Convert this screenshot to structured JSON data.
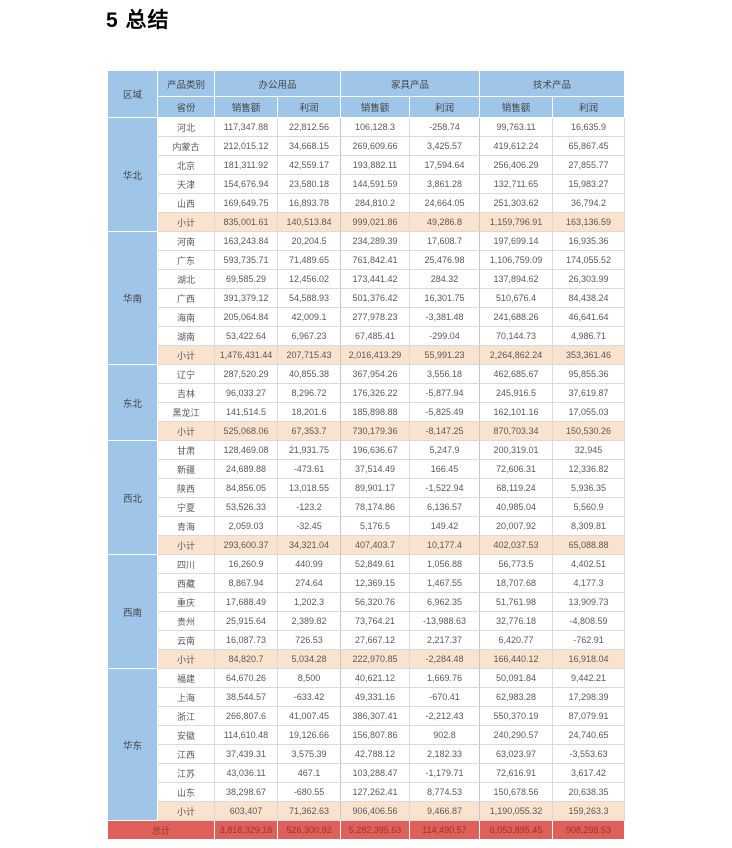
{
  "page_title": "5 总结",
  "colors": {
    "header_bg": "#9FC5E8",
    "header_text": "#454545",
    "body_text": "#595959",
    "grid_line": "#D9D9D9",
    "subtotal_bg": "#FAE3CE",
    "total_bg": "#DF605B",
    "total_text": "#96342F"
  },
  "table": {
    "header": {
      "region": "区域",
      "category": "产品类别",
      "province": "省份",
      "groups": [
        {
          "label": "办公用品",
          "sales": "销售额",
          "profit": "利润"
        },
        {
          "label": "家具产品",
          "sales": "销售额",
          "profit": "利润"
        },
        {
          "label": "技术产品",
          "sales": "销售额",
          "profit": "利润"
        }
      ]
    },
    "subtotal_label": "小计",
    "total_label": "总计",
    "regions": [
      {
        "name": "华北",
        "rows": [
          {
            "province": "河北",
            "values": [
              "117,347.88",
              "22,812.56",
              "106,128.3",
              "-258.74",
              "99,763.11",
              "16,635.9"
            ]
          },
          {
            "province": "内蒙古",
            "values": [
              "212,015.12",
              "34,668.15",
              "269,609.66",
              "3,425.57",
              "419,612.24",
              "65,867.45"
            ]
          },
          {
            "province": "北京",
            "values": [
              "181,311.92",
              "42,559.17",
              "193,882.11",
              "17,594.64",
              "256,406.29",
              "27,855.77"
            ]
          },
          {
            "province": "天津",
            "values": [
              "154,676.94",
              "23,580.18",
              "144,591.59",
              "3,861.28",
              "132,711.65",
              "15,983.27"
            ]
          },
          {
            "province": "山西",
            "values": [
              "169,649.75",
              "16,893.78",
              "284,810.2",
              "24,664.05",
              "251,303.62",
              "36,794.2"
            ]
          }
        ],
        "subtotal": [
          "835,001.61",
          "140,513.84",
          "999,021.86",
          "49,286.8",
          "1,159,796.91",
          "163,136.59"
        ]
      },
      {
        "name": "华南",
        "rows": [
          {
            "province": "河南",
            "values": [
              "163,243.84",
              "20,204.5",
              "234,289.39",
              "17,608.7",
              "197,699.14",
              "16,935.36"
            ]
          },
          {
            "province": "广东",
            "values": [
              "593,735.71",
              "71,489.65",
              "761,842.41",
              "25,476.98",
              "1,106,759.09",
              "174,055.52"
            ]
          },
          {
            "province": "湖北",
            "values": [
              "69,585.29",
              "12,456.02",
              "173,441.42",
              "284.32",
              "137,894.62",
              "26,303.99"
            ]
          },
          {
            "province": "广西",
            "values": [
              "391,379.12",
              "54,588.93",
              "501,376.42",
              "16,301.75",
              "510,676.4",
              "84,438.24"
            ]
          },
          {
            "province": "海南",
            "values": [
              "205,064.84",
              "42,009.1",
              "277,978.23",
              "-3,381.48",
              "241,688.26",
              "46,641.64"
            ]
          },
          {
            "province": "湖南",
            "values": [
              "53,422.64",
              "6,967.23",
              "67,485.41",
              "-299.04",
              "70,144.73",
              "4,986.71"
            ]
          }
        ],
        "subtotal": [
          "1,476,431.44",
          "207,715.43",
          "2,016,413.29",
          "55,991.23",
          "2,264,862.24",
          "353,361.46"
        ]
      },
      {
        "name": "东北",
        "rows": [
          {
            "province": "辽宁",
            "values": [
              "287,520.29",
              "40,855.38",
              "367,954.26",
              "3,556.18",
              "462,685.67",
              "95,855.36"
            ]
          },
          {
            "province": "吉林",
            "values": [
              "96,033.27",
              "8,296.72",
              "176,326.22",
              "-5,877.94",
              "245,916.5",
              "37,619.87"
            ]
          },
          {
            "province": "黑龙江",
            "values": [
              "141,514.5",
              "18,201.6",
              "185,898.88",
              "-5,825.49",
              "162,101.16",
              "17,055.03"
            ]
          }
        ],
        "subtotal": [
          "525,068.06",
          "67,353.7",
          "730,179.36",
          "-8,147.25",
          "870,703.34",
          "150,530.26"
        ]
      },
      {
        "name": "西北",
        "rows": [
          {
            "province": "甘肃",
            "values": [
              "128,469.08",
              "21,931.75",
              "196,636.67",
              "5,247.9",
              "200,319.01",
              "32,945"
            ]
          },
          {
            "province": "新疆",
            "values": [
              "24,689.88",
              "-473.61",
              "37,514.49",
              "166.45",
              "72,606.31",
              "12,336.82"
            ]
          },
          {
            "province": "陕西",
            "values": [
              "84,856.05",
              "13,018.55",
              "89,901.17",
              "-1,522.94",
              "68,119.24",
              "5,936.35"
            ]
          },
          {
            "province": "宁夏",
            "values": [
              "53,526.33",
              "-123.2",
              "78,174.86",
              "6,136.57",
              "40,985.04",
              "5,560.9"
            ]
          },
          {
            "province": "青海",
            "values": [
              "2,059.03",
              "-32.45",
              "5,176.5",
              "149.42",
              "20,007.92",
              "8,309.81"
            ]
          }
        ],
        "subtotal": [
          "293,600.37",
          "34,321.04",
          "407,403.7",
          "10,177.4",
          "402,037.53",
          "65,088.88"
        ]
      },
      {
        "name": "西南",
        "rows": [
          {
            "province": "四川",
            "values": [
              "16,260.9",
              "440.99",
              "52,849.61",
              "1,056.88",
              "56,773.5",
              "4,402.51"
            ]
          },
          {
            "province": "西藏",
            "values": [
              "8,867.94",
              "274.64",
              "12,369.15",
              "1,467.55",
              "18,707.68",
              "4,177.3"
            ]
          },
          {
            "province": "重庆",
            "values": [
              "17,688.49",
              "1,202.3",
              "56,320.76",
              "6,962.35",
              "51,761.98",
              "13,909.73"
            ]
          },
          {
            "province": "贵州",
            "values": [
              "25,915.64",
              "2,389.82",
              "73,764.21",
              "-13,988.63",
              "32,776.18",
              "-4,808.59"
            ]
          },
          {
            "province": "云南",
            "values": [
              "16,087.73",
              "726.53",
              "27,667.12",
              "2,217.37",
              "6,420.77",
              "-762.91"
            ]
          }
        ],
        "subtotal": [
          "84,820.7",
          "5,034.28",
          "222,970.85",
          "-2,284.48",
          "166,440.12",
          "16,918.04"
        ]
      },
      {
        "name": "华东",
        "rows": [
          {
            "province": "福建",
            "values": [
              "64,670.26",
              "8,500",
              "40,621.12",
              "1,669.76",
              "50,091.84",
              "9,442.21"
            ]
          },
          {
            "province": "上海",
            "values": [
              "38,544.57",
              "-633.42",
              "49,331.16",
              "-670.41",
              "62,983.28",
              "17,298.39"
            ]
          },
          {
            "province": "浙江",
            "values": [
              "266,807.6",
              "41,007.45",
              "386,307.41",
              "-2,212.43",
              "550,370.19",
              "87,079.91"
            ]
          },
          {
            "province": "安徽",
            "values": [
              "114,610.48",
              "19,126.66",
              "156,807.86",
              "902.8",
              "240,290.57",
              "24,740.65"
            ]
          },
          {
            "province": "江西",
            "values": [
              "37,439.31",
              "3,575.39",
              "42,788.12",
              "2,182.33",
              "63,023.97",
              "-3,553.63"
            ]
          },
          {
            "province": "江苏",
            "values": [
              "43,036.11",
              "467.1",
              "103,288.47",
              "-1,179.71",
              "72,616.91",
              "3,617.42"
            ]
          },
          {
            "province": "山东",
            "values": [
              "38,298.67",
              "-680.55",
              "127,262.41",
              "8,774.53",
              "150,678.56",
              "20,638.35"
            ]
          }
        ],
        "subtotal": [
          "603,407",
          "71,362.63",
          "906,406.56",
          "9,466.87",
          "1,190,055.32",
          "159,263.3"
        ]
      }
    ],
    "total_values": [
      "3,818,329.18",
      "526,300.92",
      "5,282,395.63",
      "114,490.57",
      "6,053,895.45",
      "908,298.53"
    ]
  }
}
